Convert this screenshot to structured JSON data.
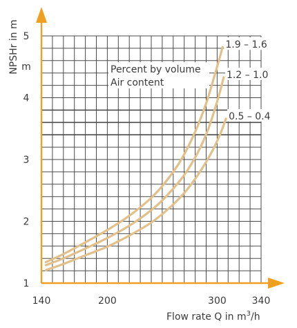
{
  "chart_data": {
    "type": "line",
    "xlabel_prefix": "Flow rate Q in m",
    "xlabel_sup": "3",
    "xlabel_suffix": "/h",
    "ylabel": "NPSHr in m",
    "y_unit_label": "m",
    "xlim": [
      140,
      340
    ],
    "ylim": [
      1,
      5
    ],
    "x_ticks": [
      "140",
      "200",
      "300",
      "340"
    ],
    "y_ticks": [
      "1",
      "2",
      "3",
      "4",
      "5"
    ],
    "grid": true,
    "heavy_gridlines_y": [
      3.4,
      3.6,
      3.8
    ],
    "annotation_lines": [
      "Percent by volume",
      "Air content"
    ],
    "accent_color": "#f0a020",
    "curve_color": "#e2c08a",
    "series": [
      {
        "name": "1.9 – 1.6",
        "x": [
          144,
          160,
          180,
          200,
          220,
          240,
          255,
          268,
          280,
          290,
          298,
          305
        ],
        "y": [
          1.34,
          1.47,
          1.66,
          1.86,
          2.09,
          2.38,
          2.68,
          3.02,
          3.45,
          3.91,
          4.38,
          4.82
        ]
      },
      {
        "name": "1.2 – 1.0",
        "x": [
          144,
          160,
          180,
          200,
          220,
          240,
          255,
          270,
          282,
          292,
          300,
          306
        ],
        "y": [
          1.29,
          1.4,
          1.56,
          1.73,
          1.93,
          2.18,
          2.43,
          2.75,
          3.1,
          3.5,
          3.94,
          4.33
        ]
      },
      {
        "name": "0.5 – 0.4",
        "x": [
          144,
          160,
          180,
          200,
          220,
          240,
          258,
          272,
          285,
          295,
          303,
          308
        ],
        "y": [
          1.21,
          1.31,
          1.45,
          1.59,
          1.77,
          1.98,
          2.24,
          2.5,
          2.82,
          3.12,
          3.42,
          3.66
        ]
      }
    ]
  }
}
